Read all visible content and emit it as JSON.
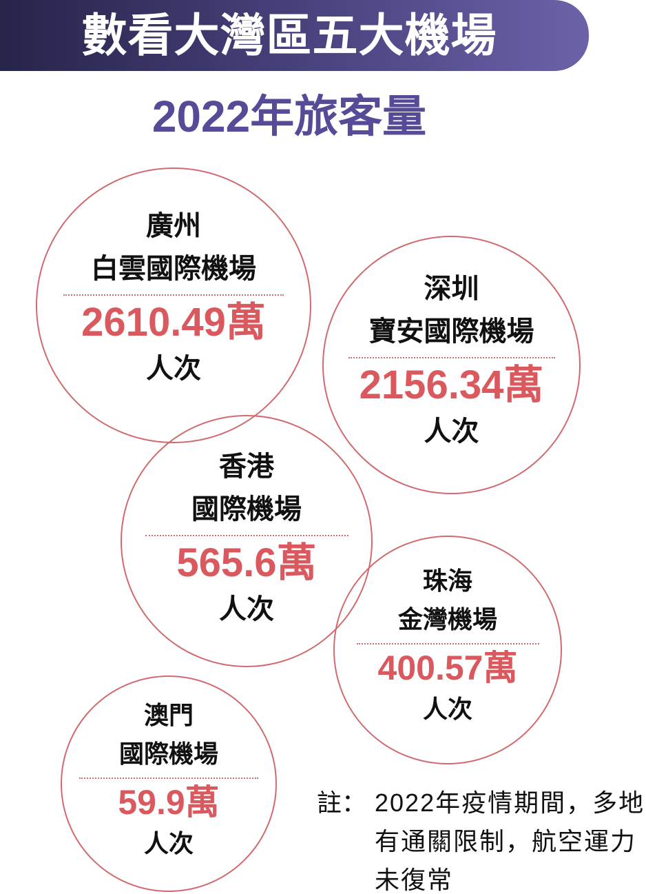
{
  "header": {
    "title": "數看大灣區五大機場",
    "subtitle": "2022年旅客量"
  },
  "colors": {
    "banner": "#3a3566",
    "subtitle": "#554b96",
    "circle": "#d06a6e",
    "value": "#d9595e"
  },
  "airports": [
    {
      "city": "廣州",
      "name": "白雲國際機場",
      "value": "2610.49萬",
      "unit": "人次"
    },
    {
      "city": "深圳",
      "name": "寶安國際機場",
      "value": "2156.34萬",
      "unit": "人次"
    },
    {
      "city": "香港",
      "name": "國際機場",
      "value": "565.6萬",
      "unit": "人次"
    },
    {
      "city": "珠海",
      "name": "金灣機場",
      "value": "400.57萬",
      "unit": "人次"
    },
    {
      "city": "澳門",
      "name": "國際機場",
      "value": "59.9萬",
      "unit": "人次"
    }
  ],
  "note": {
    "label": "註：",
    "text": "2022年疫情期間，多地有通關限制，航空運力未復常"
  }
}
